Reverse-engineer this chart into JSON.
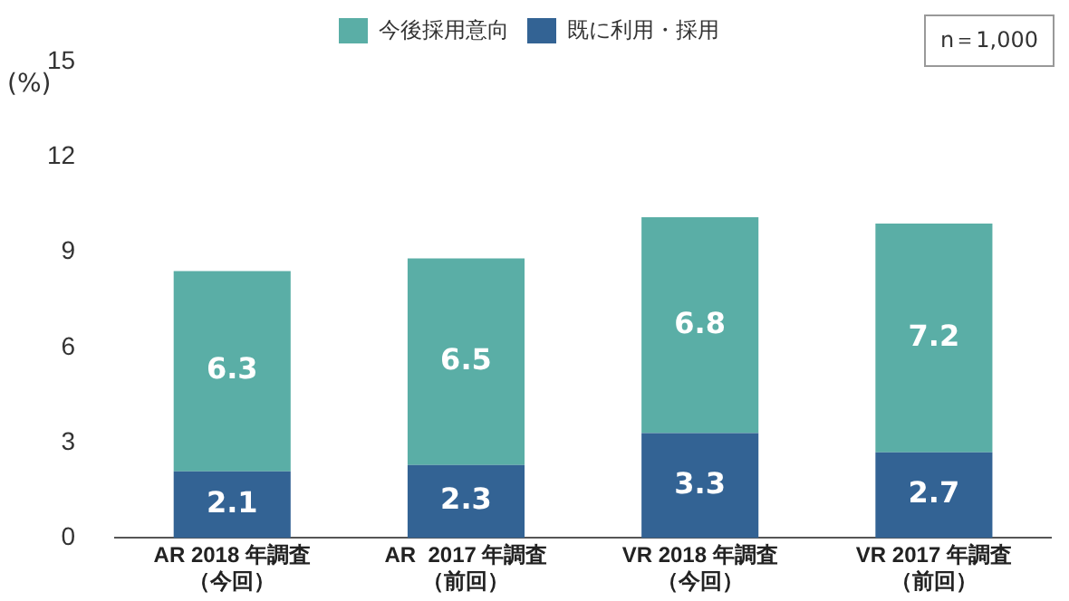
{
  "chart_data": {
    "type": "bar",
    "stacked": true,
    "ylabel": "(%)",
    "categories": [
      "AR 2018 年調査（今回）",
      "AR  2017 年調査（前回）",
      "VR 2018 年調査（今回）",
      "VR 2017 年調査（前回）"
    ],
    "series": [
      {
        "name": "既に利用・採用",
        "color": "#336394",
        "values": [
          2.1,
          2.3,
          3.3,
          2.7
        ]
      },
      {
        "name": "今後採用意向",
        "color": "#5aaea6",
        "values": [
          6.3,
          6.5,
          6.8,
          7.2
        ]
      }
    ],
    "ylim": [
      0,
      15
    ],
    "yticks": [
      0,
      3,
      6,
      9,
      12,
      15
    ],
    "grid": false,
    "legend": "top",
    "data_labels": true,
    "annotations": [
      "n＝1,000"
    ]
  }
}
